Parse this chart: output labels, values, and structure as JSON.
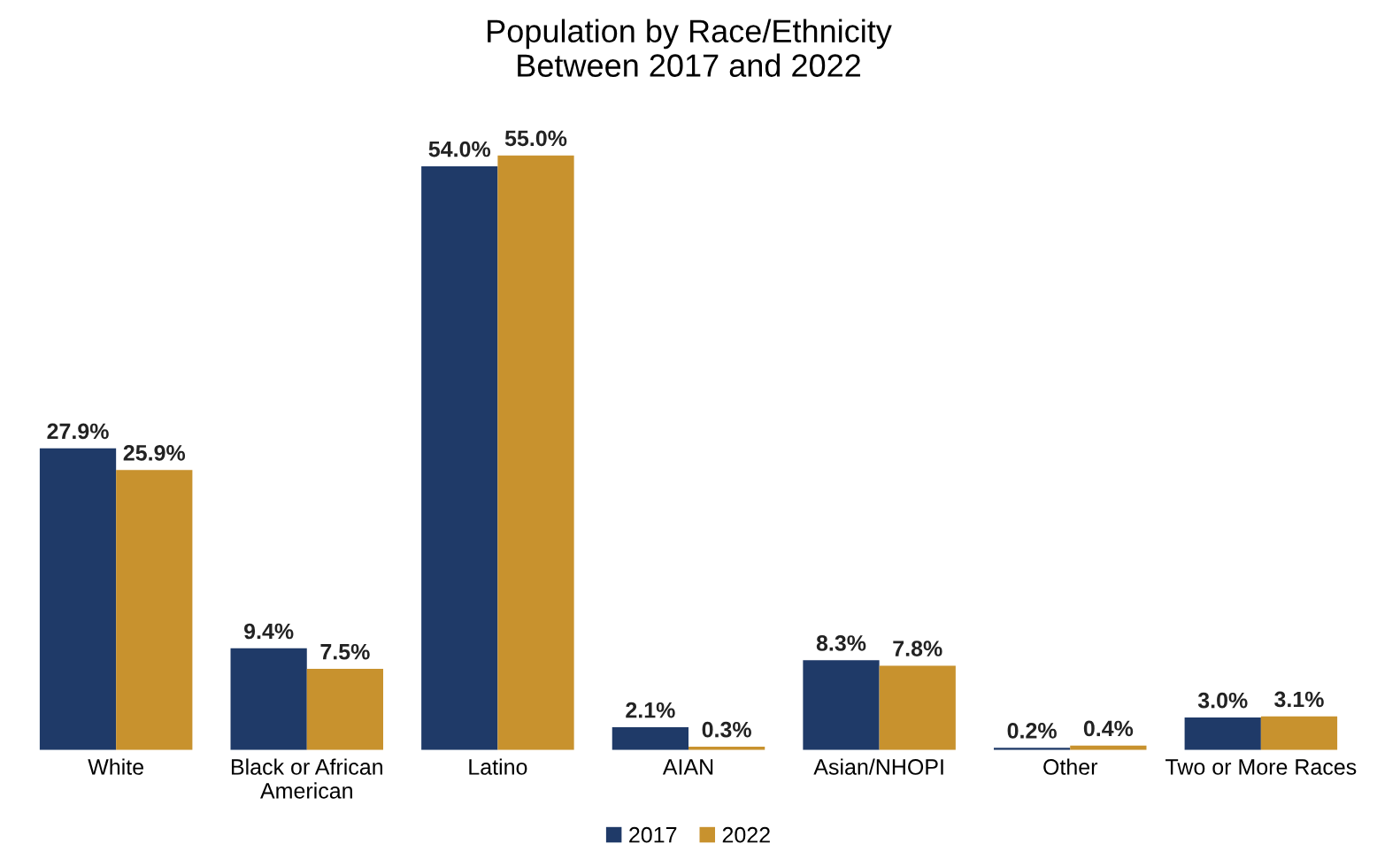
{
  "chart_data": {
    "type": "bar",
    "title": "Population by Race/Ethnicity\nBetween 2017 and 2022",
    "categories": [
      "White",
      "Black or African\nAmerican",
      "Latino",
      "AIAN",
      "Asian/NHOPI",
      "Other",
      "Two or More Races"
    ],
    "series": [
      {
        "name": "2017",
        "color": "#1f3a68",
        "values": [
          27.9,
          9.4,
          54.0,
          2.1,
          8.3,
          0.2,
          3.0
        ],
        "value_labels": [
          "27.9%",
          "9.4%",
          "54.0%",
          "2.1%",
          "8.3%",
          "0.2%",
          "3.0%"
        ]
      },
      {
        "name": "2022",
        "color": "#c8922e",
        "values": [
          25.9,
          7.5,
          55.0,
          0.3,
          7.8,
          0.4,
          3.1
        ],
        "value_labels": [
          "25.9%",
          "7.5%",
          "55.0%",
          "0.3%",
          "7.8%",
          "0.4%",
          "3.1%"
        ]
      }
    ],
    "legend": "bottom",
    "grid": false
  }
}
